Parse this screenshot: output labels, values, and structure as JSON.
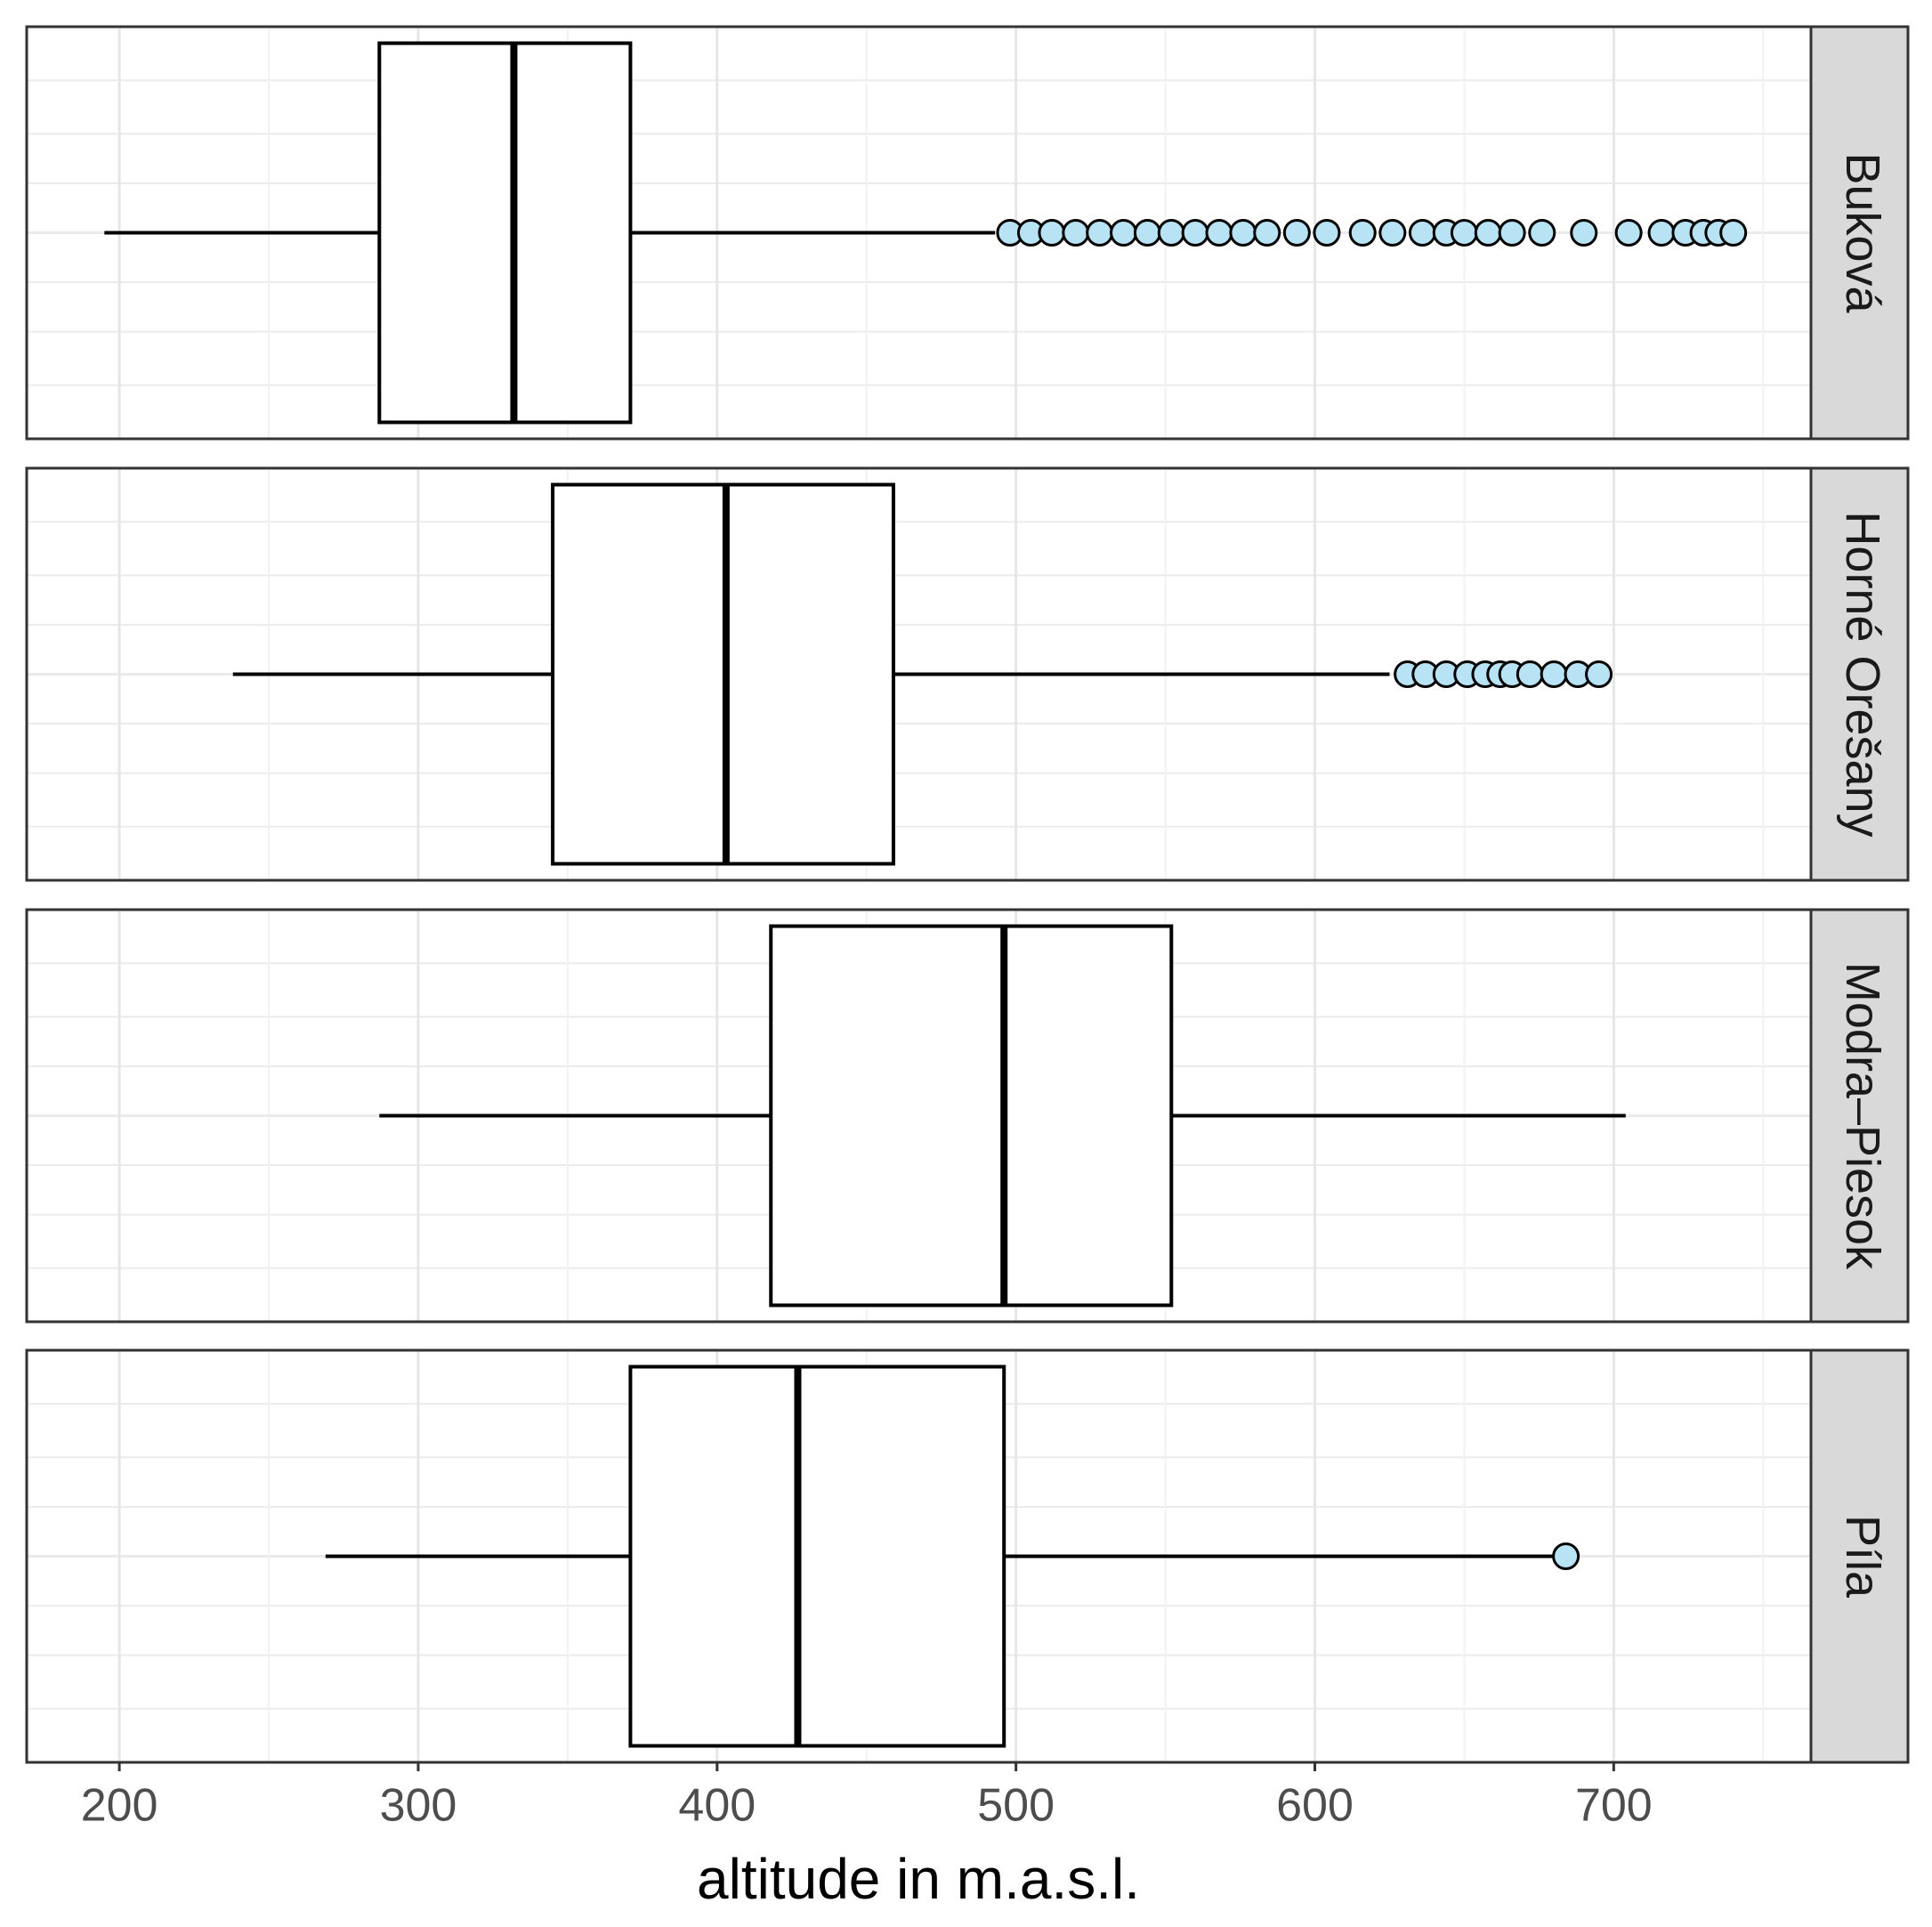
{
  "chart_data": {
    "type": "boxplot",
    "xlabel": "altitude in m.a.s.l.",
    "xlim": [
      169,
      766
    ],
    "xticks": [
      200,
      300,
      400,
      500,
      600,
      700
    ],
    "xminor": [
      250,
      350,
      450,
      550,
      650,
      750
    ],
    "grid": true,
    "outlier_color": "#b7e3f5",
    "panels": [
      {
        "name": "Buková",
        "min": 195,
        "q1": 287,
        "median": 332,
        "q3": 371,
        "max": 493,
        "outliers": [
          498,
          505,
          512,
          520,
          528,
          536,
          544,
          552,
          560,
          568,
          576,
          584,
          594,
          604,
          616,
          626,
          636,
          644,
          650,
          658,
          666,
          676,
          690,
          705,
          716,
          724,
          730,
          735,
          740
        ]
      },
      {
        "name": "Horné Orešany",
        "min": 238,
        "q1": 345,
        "median": 403,
        "q3": 459,
        "max": 625,
        "outliers": [
          631,
          637,
          644,
          651,
          657,
          662,
          666,
          672,
          680,
          688,
          695
        ]
      },
      {
        "name": "Modra–Piesok",
        "min": 287,
        "q1": 418,
        "median": 496,
        "q3": 552,
        "max": 704,
        "outliers": []
      },
      {
        "name": "Píla",
        "min": 269,
        "q1": 371,
        "median": 427,
        "q3": 496,
        "max": 682,
        "outliers": [
          684
        ]
      }
    ]
  }
}
